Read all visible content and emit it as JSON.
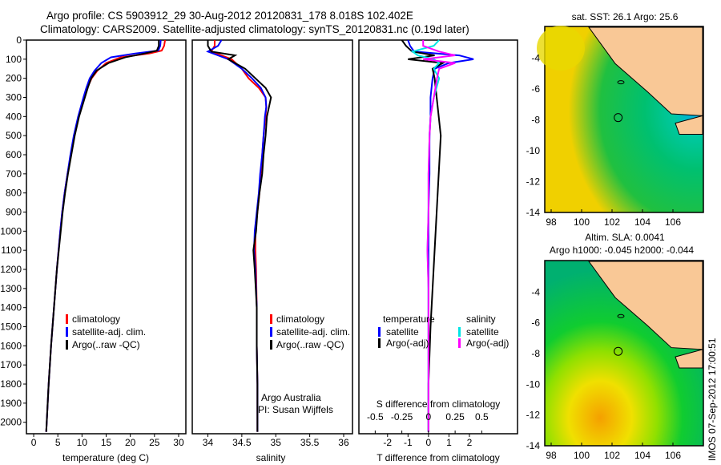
{
  "title_line1": "Argo profile: CS 5903912_29 30-Aug-2012 20120831_178 8.018S 102.402E",
  "title_line2": "Climatology: CARS2009. Satellite-adjusted climatology: synTS_20120831.nc (0.19d later)",
  "colors": {
    "climatology": "#ff0000",
    "satellite": "#0000ff",
    "argo": "#000000",
    "sal_sat": "#00e5e5",
    "sal_argo": "#ff00ff",
    "land": "#f9c896"
  },
  "chart_data": [
    {
      "type": "line",
      "name": "temperature",
      "xlabel": "temperature (deg C)",
      "xlim": [
        -1.5,
        31.5
      ],
      "ylim": [
        2060,
        0
      ],
      "xticks": [
        0,
        5,
        10,
        15,
        20,
        25,
        30
      ],
      "yticks": [
        0,
        100,
        200,
        300,
        400,
        500,
        600,
        700,
        800,
        900,
        1000,
        1100,
        1200,
        1300,
        1400,
        1500,
        1600,
        1700,
        1800,
        1900,
        2000
      ],
      "legend": [
        "climatology",
        "satellite-adj. clim.",
        "Argo(..raw -QC)"
      ],
      "depth": [
        0,
        30,
        55,
        70,
        90,
        120,
        160,
        200,
        250,
        300,
        400,
        500,
        600,
        700,
        800,
        900,
        1000,
        1200,
        1400,
        1600,
        1800,
        2000,
        2050
      ],
      "series": [
        {
          "name": "climatology",
          "values": [
            27.2,
            27.0,
            26.5,
            24,
            18,
            15,
            13.2,
            12,
            11.1,
            10.4,
            9.3,
            8.4,
            7.7,
            7.0,
            6.4,
            5.9,
            5.5,
            4.8,
            4.2,
            3.6,
            3.1,
            2.7,
            2.6
          ]
        },
        {
          "name": "satellite-adj. clim.",
          "values": [
            26.3,
            26.2,
            25.8,
            21,
            16,
            14,
            12.6,
            11.6,
            10.9,
            10.3,
            9.2,
            8.3,
            7.6,
            7.0,
            6.4,
            5.9,
            5.5,
            4.8,
            4.2,
            3.6,
            3.1,
            2.7,
            2.6
          ]
        },
        {
          "name": "Argo(..raw -QC)",
          "values": [
            25.9,
            25.9,
            25.5,
            23,
            19,
            15.5,
            13.0,
            11.9,
            11.2,
            10.6,
            9.4,
            8.5,
            7.8,
            7.1,
            6.5,
            6.0,
            5.6,
            4.8,
            4.2,
            3.6,
            3.1,
            2.7,
            2.6
          ]
        }
      ]
    },
    {
      "type": "line",
      "name": "salinity",
      "xlabel": "salinity",
      "xlim": [
        33.77,
        36.13
      ],
      "ylim": [
        2060,
        0
      ],
      "xticks": [
        34,
        34.5,
        35,
        35.5,
        36
      ],
      "legend": [
        "climatology",
        "satellite-adj. clim.",
        "Argo(..raw -QC)"
      ],
      "annotation": [
        "Argo Australia",
        "PI: Susan Wijffels"
      ],
      "depth": [
        0,
        30,
        60,
        80,
        100,
        150,
        200,
        250,
        300,
        350,
        400,
        500,
        600,
        700,
        800,
        900,
        1000,
        1100,
        1200,
        1400,
        1600,
        1800,
        2000,
        2050
      ],
      "series": [
        {
          "name": "climatology",
          "values": [
            34.1,
            34.1,
            34.05,
            34.2,
            34.35,
            34.5,
            34.6,
            34.75,
            34.85,
            34.86,
            34.85,
            34.82,
            34.8,
            34.78,
            34.76,
            34.73,
            34.7,
            34.7,
            34.71,
            34.72,
            34.72,
            34.73,
            34.73,
            34.73
          ]
        },
        {
          "name": "satellite-adj. clim.",
          "values": [
            34.2,
            34.15,
            34.0,
            34.15,
            34.3,
            34.5,
            34.65,
            34.78,
            34.85,
            34.86,
            34.84,
            34.82,
            34.8,
            34.77,
            34.75,
            34.72,
            34.69,
            34.68,
            34.7,
            34.72,
            34.72,
            34.73,
            34.73,
            34.73
          ]
        },
        {
          "name": "Argo(..raw -QC)",
          "values": [
            34.0,
            34.0,
            34.05,
            34.4,
            34.3,
            34.55,
            34.7,
            34.85,
            34.93,
            34.9,
            34.87,
            34.85,
            34.82,
            34.8,
            34.76,
            34.73,
            34.71,
            34.67,
            34.69,
            34.72,
            34.72,
            34.73,
            34.73,
            34.73
          ]
        }
      ]
    },
    {
      "type": "line",
      "name": "differences",
      "xlabel": "T difference from climatology",
      "xlabel2": "S difference from climatology",
      "xlim": [
        -3.4,
        4.35
      ],
      "xticks": [
        -2,
        -1,
        0,
        1,
        2
      ],
      "xticks2": [
        -0.5,
        -0.25,
        0,
        0.25,
        0.5
      ],
      "ylim": [
        2060,
        0
      ],
      "legend_title_t": "temperature",
      "legend_title_s": "salinity",
      "legend": [
        "satellite",
        "Argo(-adj)",
        "satellite",
        "Argo(-adj)"
      ],
      "depth": [
        0,
        30,
        60,
        80,
        100,
        120,
        150,
        200,
        300,
        400,
        500,
        700,
        900,
        1100,
        1300,
        1500,
        1800,
        2000,
        2050
      ],
      "series": [
        {
          "name": "T satellite",
          "values": [
            -1,
            -0.9,
            -0.7,
            1.5,
            2.2,
            1.0,
            0.3,
            0.2,
            0.1,
            0.1,
            0.05,
            0.05,
            0,
            0,
            0,
            0,
            0,
            0,
            0
          ]
        },
        {
          "name": "T Argo(-adj)",
          "values": [
            -1.3,
            -1.1,
            -0.8,
            0.3,
            -1.0,
            0.7,
            0.2,
            0.3,
            0.4,
            0.5,
            0.6,
            0.5,
            0.4,
            0.3,
            0.2,
            0.1,
            0,
            0,
            0
          ]
        },
        {
          "name": "S satellite",
          "values": [
            0.1,
            0.05,
            -0.15,
            -0.1,
            0.05,
            0.1,
            0.05,
            0.1,
            0.05,
            0.02,
            0.01,
            0,
            0,
            -0.01,
            0,
            0,
            0,
            0,
            0
          ]
        },
        {
          "name": "S Argo(-adj)",
          "values": [
            -0.05,
            -0.05,
            0.1,
            0.25,
            -0.05,
            0.25,
            0.1,
            0.08,
            0.05,
            0.02,
            0.01,
            0,
            0,
            -0.01,
            0,
            0,
            0,
            0,
            0
          ]
        }
      ]
    },
    {
      "type": "heatmap",
      "name": "sst-map",
      "title": "sat. SST: 26.1  Argo: 25.6",
      "xticks": [
        98,
        100,
        102,
        104,
        106
      ],
      "yticks": [
        -4,
        -6,
        -8,
        -10,
        -12,
        -14
      ],
      "marker": [
        102.402,
        -8.018
      ]
    },
    {
      "type": "heatmap",
      "name": "sla-map",
      "title": "Altim. SLA: 0.0041",
      "title2": "Argo h1000: -0.045 h2000: -0.044",
      "xticks": [
        98,
        100,
        102,
        104,
        106
      ],
      "yticks": [
        -4,
        -6,
        -8,
        -10,
        -12,
        -14
      ],
      "marker": [
        102.402,
        -8.018
      ]
    }
  ],
  "footer": "IMOS 07-Sep-2012 17:00:51"
}
